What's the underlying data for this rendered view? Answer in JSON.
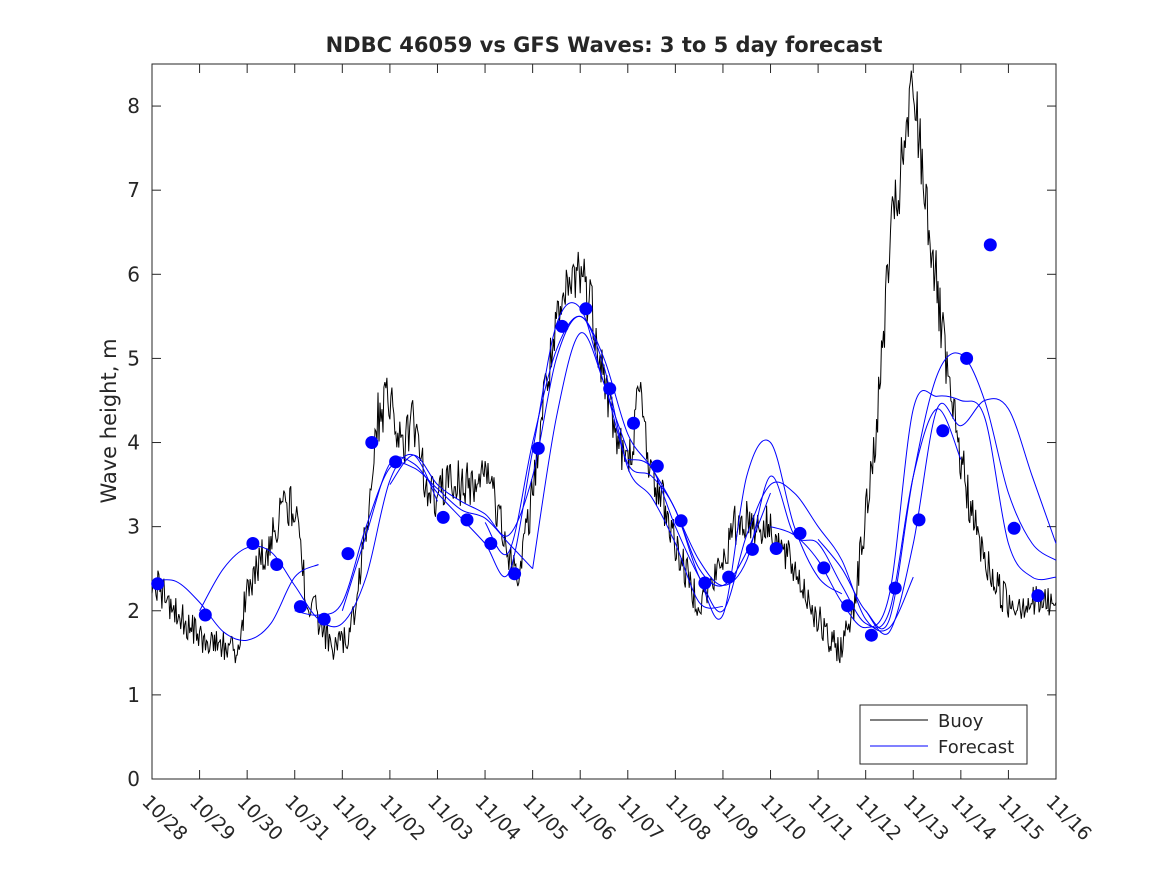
{
  "chart_data": {
    "type": "line",
    "title": "NDBC 46059 vs GFS Waves: 3 to 5 day forecast",
    "xlabel": "",
    "ylabel": "Wave height, m",
    "xlim": [
      0,
      19
    ],
    "ylim": [
      0,
      8.5
    ],
    "yticks": [
      0,
      1,
      2,
      3,
      4,
      5,
      6,
      7,
      8
    ],
    "xtick_labels": [
      "10/28",
      "10/29",
      "10/30",
      "10/31",
      "11/01",
      "11/02",
      "11/03",
      "11/04",
      "11/05",
      "11/06",
      "11/07",
      "11/08",
      "11/09",
      "11/10",
      "11/11",
      "11/12",
      "11/13",
      "11/14",
      "11/15",
      "11/16"
    ],
    "legend": {
      "position": "bottom-right",
      "entries": [
        "Buoy",
        "Forecast"
      ]
    },
    "colors": {
      "buoy": "#000000",
      "forecast": "#0000ff",
      "markers": "#0000ff",
      "axes": "#262626"
    },
    "buoy": {
      "x": [
        0,
        0.25,
        0.5,
        0.75,
        1.0,
        1.25,
        1.5,
        1.75,
        2.0,
        2.25,
        2.5,
        2.75,
        3.0,
        3.25,
        3.5,
        3.75,
        4.0,
        4.25,
        4.5,
        4.75,
        5.0,
        5.25,
        5.5,
        5.75,
        6.0,
        6.25,
        6.5,
        6.75,
        7.0,
        7.25,
        7.5,
        7.75,
        8.0,
        8.25,
        8.5,
        8.75,
        9.0,
        9.25,
        9.5,
        9.75,
        10.0,
        10.25,
        10.5,
        10.75,
        11.0,
        11.25,
        11.5,
        11.75,
        12.0,
        12.25,
        12.5,
        12.75,
        13.0,
        13.25,
        13.5,
        13.75,
        14.0,
        14.25,
        14.5,
        14.75,
        15.0,
        15.25,
        15.5,
        15.75,
        16.0,
        16.25,
        16.5,
        16.75,
        17.0,
        17.25,
        17.5,
        17.75,
        18.0,
        18.25,
        18.5,
        18.75,
        19.0
      ],
      "y": [
        2.4,
        2.2,
        2.0,
        1.8,
        1.7,
        1.65,
        1.6,
        1.5,
        2.2,
        2.6,
        2.8,
        3.3,
        3.2,
        2.2,
        1.9,
        1.6,
        1.6,
        1.9,
        3.0,
        4.3,
        4.6,
        3.9,
        4.3,
        3.5,
        3.3,
        3.6,
        3.5,
        3.5,
        3.7,
        3.2,
        2.6,
        2.5,
        3.4,
        4.6,
        5.3,
        5.8,
        6.1,
        5.6,
        4.8,
        4.1,
        3.7,
        4.6,
        3.6,
        3.3,
        2.8,
        2.4,
        2.1,
        2.3,
        2.6,
        3.0,
        3.1,
        3.0,
        3.0,
        2.7,
        2.5,
        2.2,
        1.9,
        1.6,
        1.55,
        2.1,
        3.1,
        4.3,
        6.3,
        7.2,
        8.2,
        7.0,
        5.8,
        4.6,
        3.8,
        3.1,
        2.6,
        2.3,
        2.1,
        2.1,
        2.1,
        2.1,
        2.1
      ]
    },
    "forecast_runs": [
      {
        "name": "run-1",
        "x": [
          0,
          0.5,
          1.0,
          1.5,
          2.0,
          2.5,
          3.0,
          3.5
        ],
        "y": [
          2.35,
          2.35,
          2.1,
          1.75,
          1.65,
          1.85,
          2.4,
          2.55
        ]
      },
      {
        "name": "run-2",
        "x": [
          1.0,
          1.5,
          2.0,
          2.5,
          3.0,
          3.5,
          4.0,
          4.5,
          5.0,
          5.5,
          6.0
        ],
        "y": [
          2.0,
          2.5,
          2.75,
          2.7,
          2.3,
          1.9,
          1.85,
          2.4,
          3.55,
          3.85,
          3.3
        ]
      },
      {
        "name": "run-3",
        "x": [
          3.0,
          3.5,
          4.0,
          4.5,
          5.0,
          5.5,
          6.0,
          6.5,
          7.0,
          7.5,
          8.0
        ],
        "y": [
          2.0,
          1.95,
          2.1,
          3.0,
          3.7,
          3.7,
          3.45,
          3.2,
          3.1,
          2.8,
          2.5
        ]
      },
      {
        "name": "run-4",
        "x": [
          4.0,
          4.5,
          5.0,
          5.5,
          6.0,
          6.5,
          7.0,
          7.5,
          8.0,
          8.5,
          9.0,
          9.5,
          10.0
        ],
        "y": [
          2.0,
          2.9,
          3.75,
          3.75,
          3.4,
          3.1,
          2.8,
          2.45,
          3.9,
          5.4,
          5.6,
          4.7,
          3.9
        ]
      },
      {
        "name": "run-5",
        "x": [
          5.0,
          5.5,
          6.0,
          6.5,
          7.0,
          7.5,
          8.0,
          8.5,
          9.0,
          9.5,
          10.0,
          10.5,
          11.0,
          11.5,
          12.0
        ],
        "y": [
          3.5,
          3.85,
          3.5,
          3.3,
          3.15,
          2.9,
          3.6,
          5.0,
          5.5,
          4.9,
          3.7,
          3.35,
          2.8,
          2.1,
          2.05
        ]
      },
      {
        "name": "run-6",
        "x": [
          7.0,
          7.5,
          8.0,
          8.5,
          9.0,
          9.5,
          10.0,
          10.5,
          11.0,
          11.5,
          12.0,
          12.5,
          13.0
        ],
        "y": [
          3.05,
          2.7,
          4.0,
          5.1,
          5.5,
          5.0,
          4.1,
          3.7,
          3.2,
          2.5,
          2.3,
          2.7,
          3.4
        ]
      },
      {
        "name": "run-7",
        "x": [
          8.0,
          8.5,
          9.0,
          9.5,
          10.0,
          10.5,
          11.0,
          11.5,
          12.0,
          12.5,
          13.0,
          13.5,
          14.0,
          14.5
        ],
        "y": [
          2.5,
          4.3,
          5.3,
          4.7,
          3.75,
          3.6,
          3.2,
          2.4,
          1.95,
          3.6,
          4.0,
          3.0,
          2.4,
          2.2
        ]
      },
      {
        "name": "run-8",
        "x": [
          10.0,
          10.5,
          11.0,
          11.5,
          12.0,
          12.5,
          13.0,
          13.5,
          14.0,
          14.5,
          15.0,
          15.5,
          16.0
        ],
        "y": [
          3.8,
          3.7,
          3.0,
          2.4,
          2.0,
          2.9,
          3.5,
          3.4,
          3.0,
          2.6,
          1.9,
          1.8,
          2.4
        ]
      },
      {
        "name": "run-9",
        "x": [
          11.0,
          11.5,
          12.0,
          12.5,
          13.0,
          13.5,
          14.0,
          14.5,
          15.0,
          15.5,
          16.0,
          16.5,
          17.0
        ],
        "y": [
          3.2,
          2.6,
          2.3,
          2.6,
          3.6,
          2.9,
          2.8,
          2.3,
          1.85,
          2.0,
          3.6,
          4.4,
          3.8
        ]
      },
      {
        "name": "run-10",
        "x": [
          13.0,
          13.5,
          14.0,
          14.5,
          15.0,
          15.5,
          16.0,
          16.5,
          17.0,
          17.5,
          18.0,
          18.5,
          19.0
        ],
        "y": [
          3.0,
          2.9,
          2.6,
          2.1,
          1.8,
          2.2,
          4.4,
          4.55,
          4.5,
          4.3,
          2.8,
          2.4,
          2.4
        ]
      },
      {
        "name": "run-11",
        "x": [
          14.0,
          14.5,
          15.0,
          15.5,
          16.0,
          16.5,
          17.0,
          17.5,
          18.0,
          18.5,
          19.0
        ],
        "y": [
          2.85,
          2.5,
          2.0,
          1.9,
          3.6,
          4.8,
          5.05,
          4.5,
          3.4,
          2.8,
          2.6
        ]
      },
      {
        "name": "run-12",
        "x": [
          15.0,
          15.5,
          16.0,
          16.5,
          17.0,
          17.5,
          18.0,
          18.5,
          19.0
        ],
        "y": [
          2.0,
          1.75,
          2.8,
          4.4,
          4.2,
          4.5,
          4.4,
          3.6,
          2.8
        ]
      }
    ],
    "forecast_markers": {
      "x": [
        0.12,
        1.12,
        2.12,
        2.62,
        3.12,
        3.62,
        4.12,
        4.62,
        5.12,
        6.12,
        6.62,
        7.12,
        7.62,
        8.12,
        8.62,
        9.12,
        9.62,
        10.12,
        10.62,
        11.12,
        11.62,
        12.12,
        12.62,
        13.12,
        13.62,
        14.12,
        14.62,
        15.12,
        15.62,
        16.12,
        16.62,
        17.12,
        17.62,
        18.12,
        18.62
      ],
      "y": [
        2.32,
        1.95,
        2.8,
        2.55,
        2.05,
        1.9,
        2.68,
        4.0,
        3.77,
        3.11,
        3.08,
        2.8,
        2.44,
        3.93,
        5.38,
        5.59,
        4.64,
        4.23,
        3.72,
        3.07,
        2.33,
        2.4,
        2.73,
        2.74,
        2.92,
        2.51,
        2.06,
        1.71,
        2.27,
        3.08,
        4.14,
        5.0,
        6.35,
        2.98,
        2.18
      ]
    }
  }
}
